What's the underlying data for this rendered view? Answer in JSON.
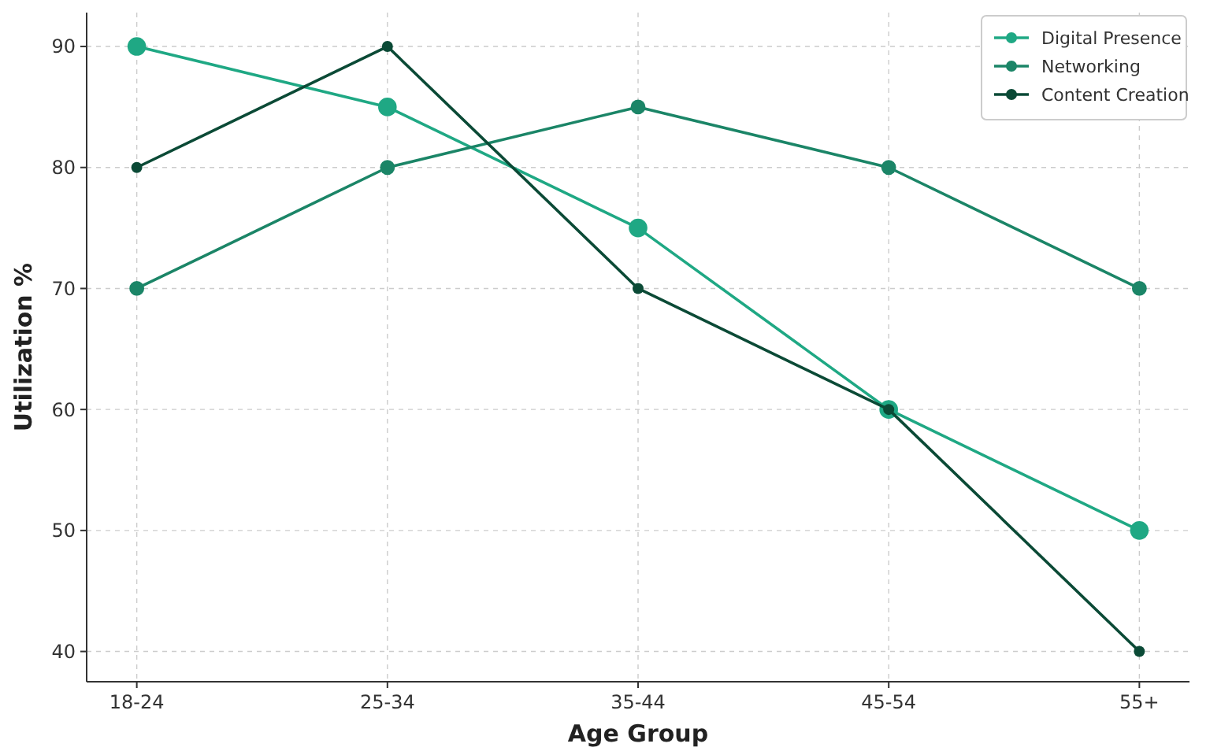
{
  "chart_data": {
    "type": "line",
    "xlabel": "Age Group",
    "ylabel": "Utilization %",
    "categories": [
      "18-24",
      "25-34",
      "35-44",
      "45-54",
      "55+"
    ],
    "series": [
      {
        "name": "Digital Presence",
        "color": "#1fa884",
        "values": [
          90,
          85,
          75,
          60,
          50
        ]
      },
      {
        "name": "Networking",
        "color": "#1b8567",
        "values": [
          70,
          80,
          85,
          80,
          70
        ]
      },
      {
        "name": "Content Creation",
        "color": "#0b4a36",
        "values": [
          80,
          90,
          70,
          60,
          40
        ]
      }
    ],
    "ylim": [
      37.5,
      92.8
    ],
    "yticks": [
      40,
      50,
      60,
      70,
      80,
      90
    ],
    "grid": true,
    "legend": "top right",
    "marker": "circle",
    "line_style": "solid"
  }
}
